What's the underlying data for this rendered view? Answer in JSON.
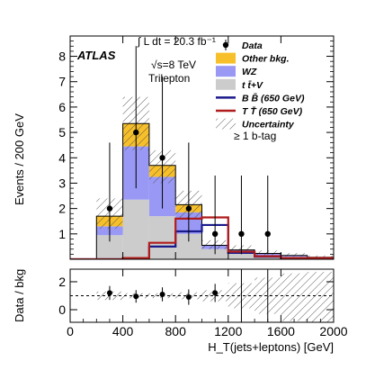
{
  "chart_data": [
    {
      "panel": "main",
      "type": "bar",
      "stacked": true,
      "ylabel": "Events / 200 GeV",
      "ylim": [
        0,
        8.8
      ],
      "xlim": [
        0,
        2000
      ],
      "yticks": [
        1,
        2,
        3,
        4,
        5,
        6,
        7,
        8
      ],
      "experiment_label": "ATLAS",
      "luminosity_label": "∫ L dt = 20.3 fb⁻¹",
      "energy_label": "√s=8 TeV",
      "channel_label": "Trilepton",
      "selection_label": "≥ 1 b-tag",
      "bin_edges": [
        200,
        400,
        600,
        800,
        1000,
        1200,
        1400,
        1600,
        1800,
        2000
      ],
      "background_stack": [
        {
          "name": "t t̄+V",
          "color": "#cccccc",
          "values": [
            0.95,
            2.35,
            1.7,
            1.0,
            0.4,
            0.25,
            0.15,
            0.1,
            0.05
          ]
        },
        {
          "name": "WZ",
          "color": "#9999f5",
          "values": [
            0.35,
            2.1,
            1.55,
            0.85,
            0.15,
            0.12,
            0.08,
            0.05,
            0.03
          ]
        },
        {
          "name": "Other bkg.",
          "color": "#f7c02b",
          "values": [
            0.4,
            0.9,
            0.45,
            0.3,
            0.0,
            0.0,
            0.0,
            0.0,
            0.0
          ]
        }
      ],
      "uncertainty_band": {
        "name": "Uncertainty",
        "lower": [
          1.2,
          4.3,
          3.0,
          1.6,
          0.4,
          0.25,
          0.15,
          0.1,
          0.05
        ],
        "upper": [
          2.4,
          6.4,
          4.3,
          2.7,
          0.75,
          0.55,
          0.35,
          0.25,
          0.15
        ]
      },
      "signals": [
        {
          "name": "B B̄ (650 GeV)",
          "color": "#1a1a8c",
          "values": [
            0.0,
            0.02,
            0.5,
            1.1,
            1.35,
            0.25,
            0.1,
            0.05,
            0.0
          ]
        },
        {
          "name": "T T̄ (650 GeV)",
          "color": "#b01c1c",
          "values": [
            0.0,
            0.05,
            0.65,
            1.6,
            1.65,
            0.3,
            0.12,
            0.05,
            0.05
          ]
        }
      ],
      "data_points": {
        "name": "Data",
        "x": [
          300,
          500,
          700,
          900,
          1100,
          1300,
          1500
        ],
        "y": [
          2,
          5,
          4,
          2,
          1,
          1,
          1
        ],
        "err_low": [
          1.3,
          2.2,
          2.0,
          1.3,
          0.8,
          0.8,
          0.8
        ],
        "err_high": [
          2.6,
          3.4,
          3.2,
          2.6,
          2.3,
          2.3,
          2.3
        ]
      },
      "legend": [
        "Data",
        "Other bkg.",
        "WZ",
        "t t̄+V",
        "B B̄ (650 GeV)",
        "T T̄ (650 GeV)",
        "Uncertainty"
      ],
      "legend_placement": "top-right"
    },
    {
      "panel": "ratio",
      "type": "scatter",
      "xlabel": "H_T(jets+leptons) [GeV]",
      "ylabel": "Data / bkg",
      "xlim": [
        0,
        2000
      ],
      "ylim": [
        -0.9,
        2.9
      ],
      "yticks": [
        0,
        2
      ],
      "xticks": [
        0,
        400,
        800,
        1200,
        1600,
        2000
      ],
      "reference_line": 1,
      "band_lower": [
        0.7,
        0.82,
        0.83,
        0.75,
        0.6,
        0.1,
        -0.3,
        -0.8,
        -0.9
      ],
      "band_upper": [
        1.3,
        1.18,
        1.17,
        1.25,
        1.4,
        1.9,
        2.3,
        2.6,
        2.7
      ],
      "x": [
        300,
        500,
        700,
        900,
        1100
      ],
      "y": [
        1.2,
        0.95,
        1.1,
        0.9,
        1.2
      ],
      "err": [
        0.5,
        0.45,
        0.5,
        0.55,
        0.65
      ]
    }
  ]
}
